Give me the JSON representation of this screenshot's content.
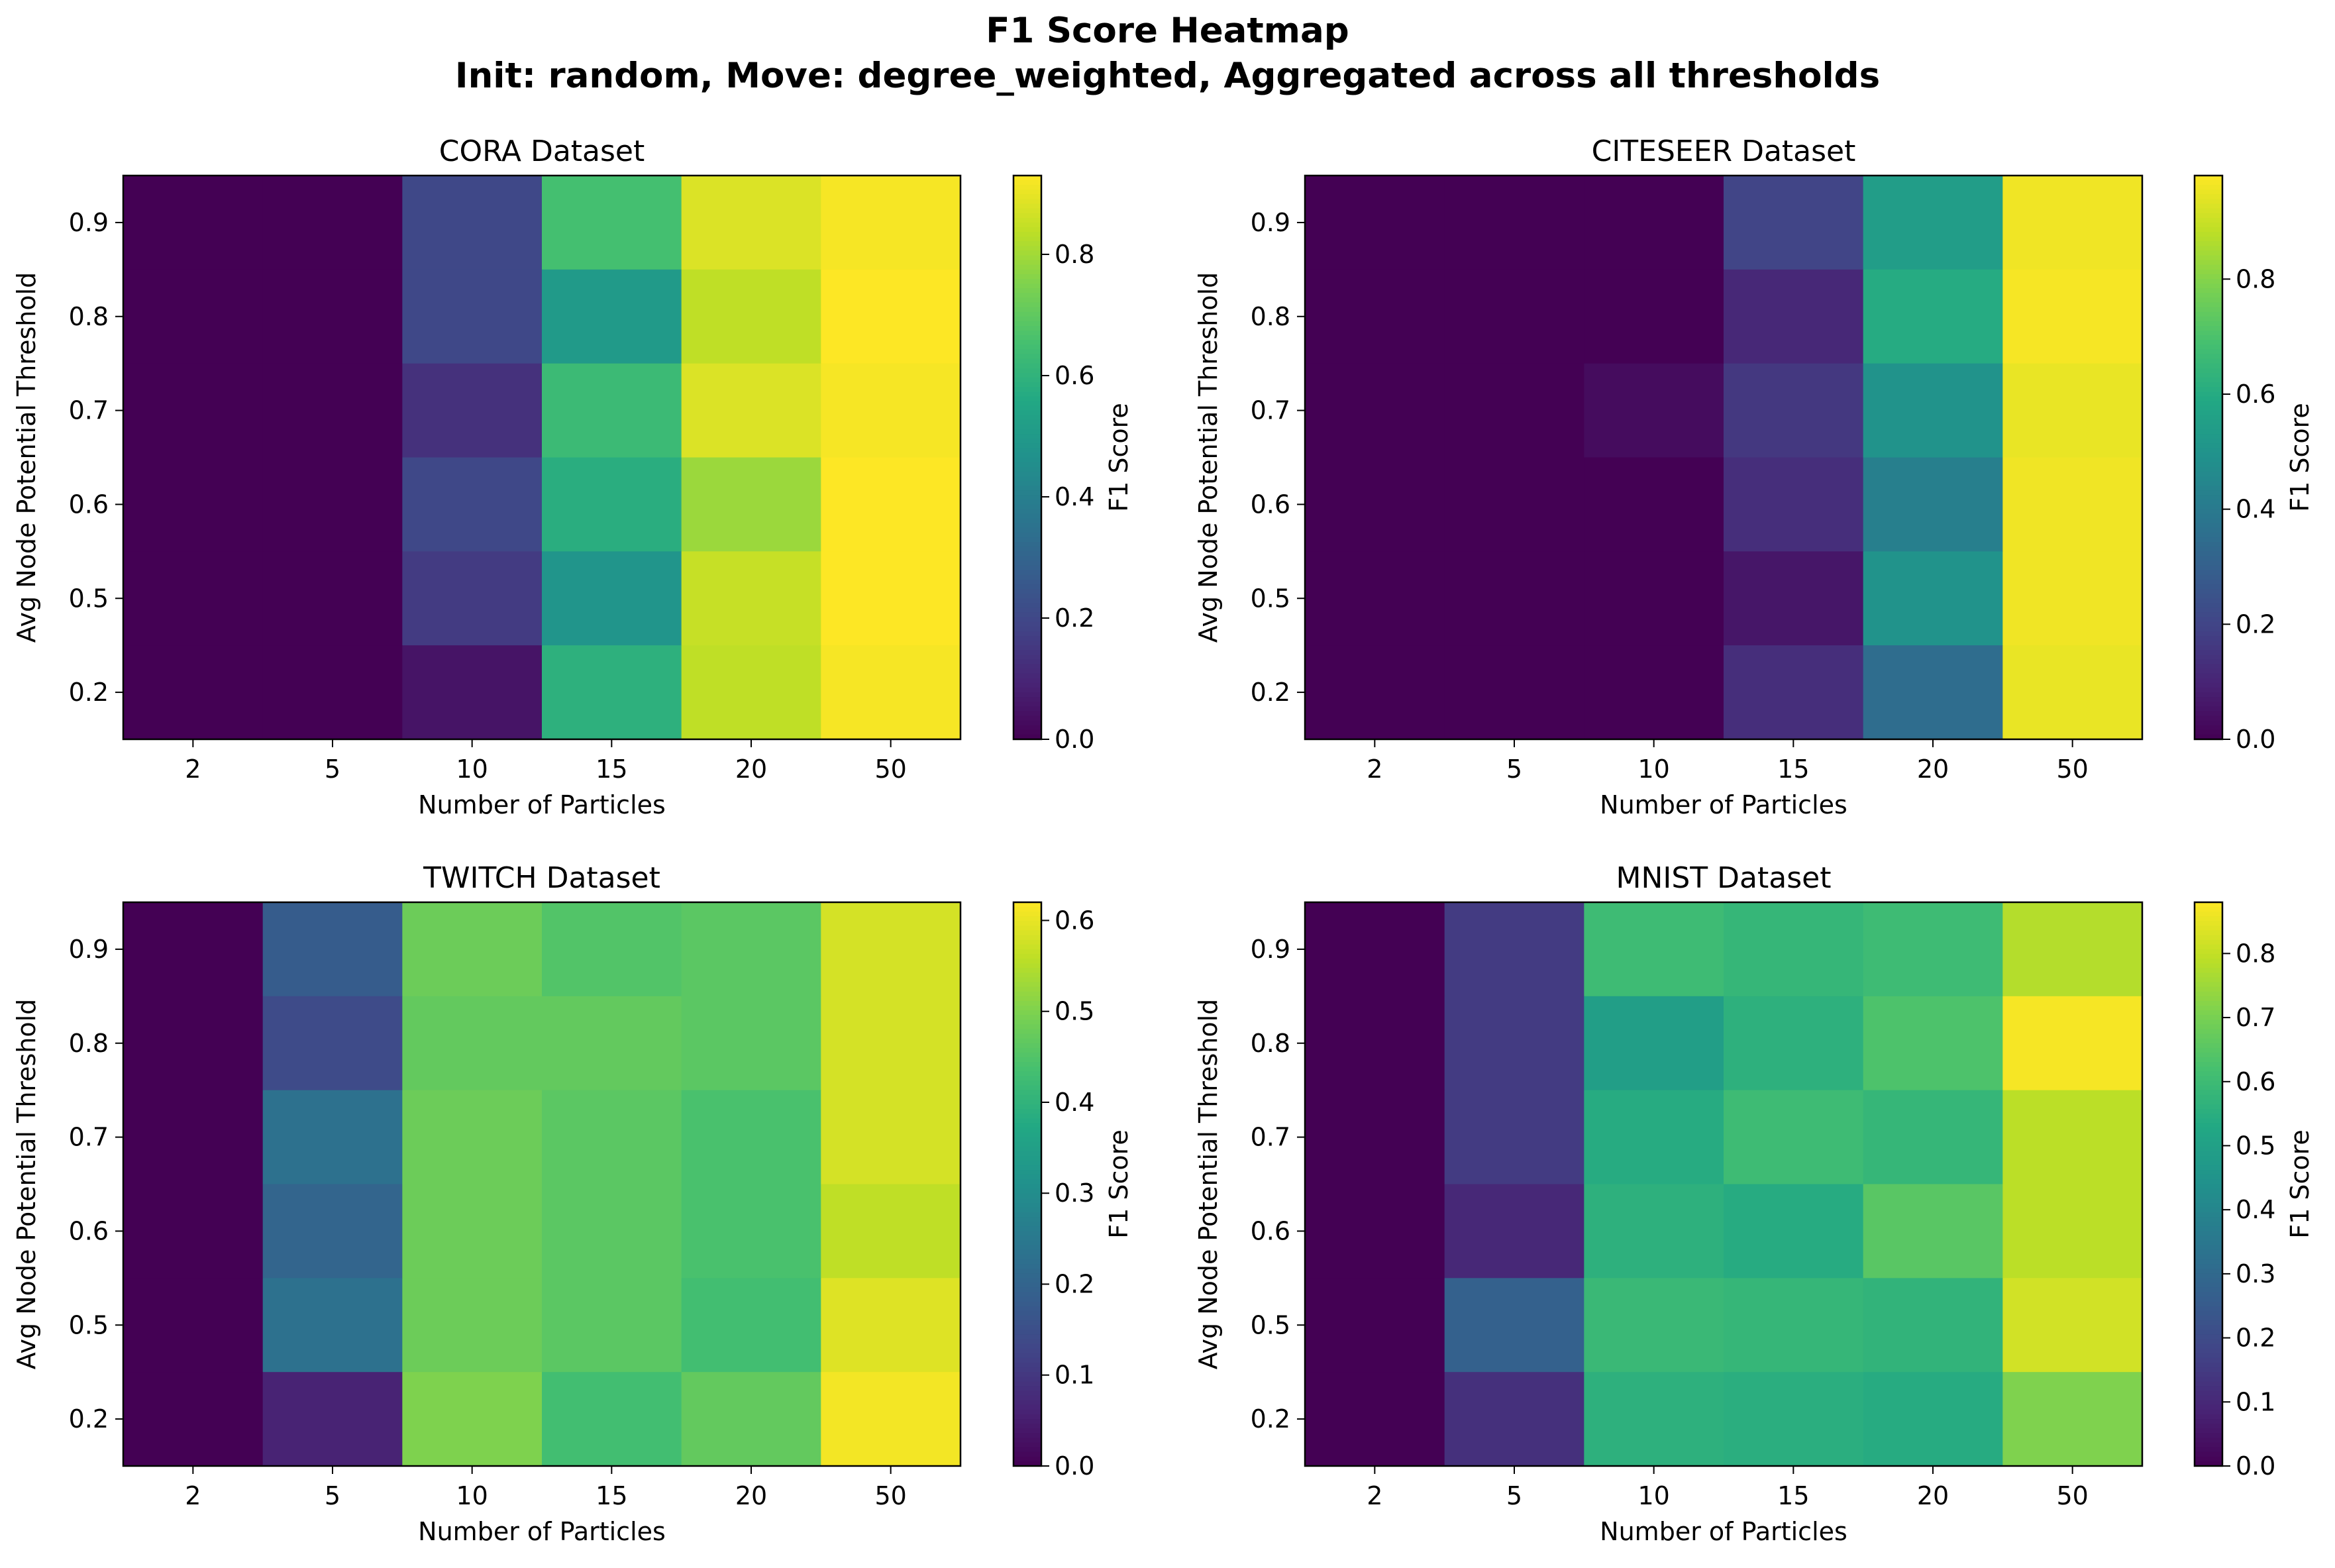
{
  "suptitle": {
    "line1": "F1 Score Heatmap",
    "line2": "Init: random, Move: degree_weighted, Aggregated across all thresholds"
  },
  "colormap": "viridis",
  "chart_data": [
    {
      "type": "heatmap",
      "title": "CORA Dataset",
      "xlabel": "Number of Particles",
      "ylabel": "Avg Node Potential Threshold",
      "colorbar_label": "F1 Score",
      "x": [
        "2",
        "5",
        "10",
        "15",
        "20",
        "50"
      ],
      "y": [
        "0.9",
        "0.8",
        "0.7",
        "0.6",
        "0.5",
        "0.2"
      ],
      "values": [
        [
          0.0,
          0.0,
          0.2,
          0.65,
          0.88,
          0.92
        ],
        [
          0.0,
          0.0,
          0.2,
          0.5,
          0.84,
          0.93
        ],
        [
          0.0,
          0.0,
          0.13,
          0.63,
          0.88,
          0.92
        ],
        [
          0.0,
          0.0,
          0.2,
          0.58,
          0.79,
          0.93
        ],
        [
          0.0,
          0.0,
          0.16,
          0.48,
          0.85,
          0.93
        ],
        [
          0.0,
          0.0,
          0.05,
          0.59,
          0.84,
          0.92
        ]
      ],
      "vmin": 0.0,
      "vmax": 0.93,
      "colorbar_ticks": [
        0.0,
        0.2,
        0.4,
        0.6,
        0.8
      ]
    },
    {
      "type": "heatmap",
      "title": "CITESEER Dataset",
      "xlabel": "Number of Particles",
      "ylabel": "Avg Node Potential Threshold",
      "colorbar_label": "F1 Score",
      "x": [
        "2",
        "5",
        "10",
        "15",
        "20",
        "50"
      ],
      "y": [
        "0.9",
        "0.8",
        "0.7",
        "0.6",
        "0.5",
        "0.2"
      ],
      "values": [
        [
          0.0,
          0.0,
          0.0,
          0.2,
          0.54,
          0.96
        ],
        [
          0.0,
          0.0,
          0.0,
          0.11,
          0.6,
          0.97
        ],
        [
          0.0,
          0.0,
          0.03,
          0.16,
          0.5,
          0.95
        ],
        [
          0.0,
          0.0,
          0.0,
          0.13,
          0.42,
          0.96
        ],
        [
          0.0,
          0.0,
          0.0,
          0.06,
          0.5,
          0.96
        ],
        [
          0.0,
          0.0,
          0.0,
          0.13,
          0.35,
          0.95
        ]
      ],
      "vmin": 0.0,
      "vmax": 0.98,
      "colorbar_ticks": [
        0.0,
        0.2,
        0.4,
        0.6,
        0.8
      ]
    },
    {
      "type": "heatmap",
      "title": "TWITCH Dataset",
      "xlabel": "Number of Particles",
      "ylabel": "Avg Node Potential Threshold",
      "colorbar_label": "F1 Score",
      "x": [
        "2",
        "5",
        "10",
        "15",
        "20",
        "50"
      ],
      "y": [
        "0.9",
        "0.8",
        "0.7",
        "0.6",
        "0.5",
        "0.2"
      ],
      "values": [
        [
          0.0,
          0.18,
          0.48,
          0.45,
          0.46,
          0.58
        ],
        [
          0.0,
          0.14,
          0.47,
          0.47,
          0.46,
          0.58
        ],
        [
          0.0,
          0.23,
          0.48,
          0.46,
          0.44,
          0.58
        ],
        [
          0.0,
          0.2,
          0.48,
          0.46,
          0.44,
          0.56
        ],
        [
          0.0,
          0.23,
          0.48,
          0.46,
          0.43,
          0.59
        ],
        [
          0.0,
          0.06,
          0.5,
          0.43,
          0.47,
          0.61
        ]
      ],
      "vmin": 0.0,
      "vmax": 0.62,
      "colorbar_ticks": [
        0.0,
        0.1,
        0.2,
        0.3,
        0.4,
        0.5,
        0.6
      ]
    },
    {
      "type": "heatmap",
      "title": "MNIST Dataset",
      "xlabel": "Number of Particles",
      "ylabel": "Avg Node Potential Threshold",
      "colorbar_label": "F1 Score",
      "x": [
        "2",
        "5",
        "10",
        "15",
        "20",
        "50"
      ],
      "y": [
        "0.9",
        "0.8",
        "0.7",
        "0.6",
        "0.5",
        "0.2"
      ],
      "values": [
        [
          0.0,
          0.15,
          0.6,
          0.58,
          0.6,
          0.78
        ],
        [
          0.0,
          0.15,
          0.49,
          0.56,
          0.63,
          0.87
        ],
        [
          0.0,
          0.15,
          0.54,
          0.6,
          0.58,
          0.79
        ],
        [
          0.0,
          0.1,
          0.56,
          0.54,
          0.65,
          0.79
        ],
        [
          0.0,
          0.27,
          0.59,
          0.58,
          0.57,
          0.82
        ],
        [
          0.0,
          0.12,
          0.56,
          0.55,
          0.54,
          0.71
        ]
      ],
      "vmin": 0.0,
      "vmax": 0.88,
      "colorbar_ticks": [
        0.0,
        0.1,
        0.2,
        0.3,
        0.4,
        0.5,
        0.6,
        0.7,
        0.8
      ]
    }
  ]
}
